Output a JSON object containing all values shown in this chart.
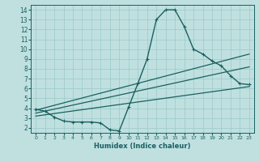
{
  "title": "",
  "xlabel": "Humidex (Indice chaleur)",
  "bg_color": "#c0e0e0",
  "grid_color": "#a0cccc",
  "line_color": "#1a6060",
  "xlim": [
    -0.5,
    23.5
  ],
  "ylim": [
    1.5,
    14.5
  ],
  "xticks": [
    0,
    1,
    2,
    3,
    4,
    5,
    6,
    7,
    8,
    9,
    10,
    11,
    12,
    13,
    14,
    15,
    16,
    17,
    18,
    19,
    20,
    21,
    22,
    23
  ],
  "yticks": [
    2,
    3,
    4,
    5,
    6,
    7,
    8,
    9,
    10,
    11,
    12,
    13,
    14
  ],
  "line1_x": [
    0,
    1,
    2,
    3,
    4,
    5,
    6,
    7,
    8,
    9,
    10,
    11,
    12,
    13,
    14,
    15,
    16,
    17,
    18,
    19,
    20,
    21,
    22,
    23
  ],
  "line1_y": [
    3.9,
    3.7,
    3.1,
    2.7,
    2.6,
    2.6,
    2.6,
    2.5,
    1.8,
    1.7,
    4.1,
    6.5,
    9.0,
    13.0,
    14.0,
    14.0,
    12.3,
    10.0,
    9.5,
    8.8,
    8.3,
    7.3,
    6.5,
    6.4
  ],
  "line2_x": [
    0,
    23
  ],
  "line2_y": [
    3.8,
    9.5
  ],
  "line3_x": [
    0,
    23
  ],
  "line3_y": [
    3.5,
    8.2
  ],
  "line4_x": [
    0,
    23
  ],
  "line4_y": [
    3.2,
    6.2
  ]
}
